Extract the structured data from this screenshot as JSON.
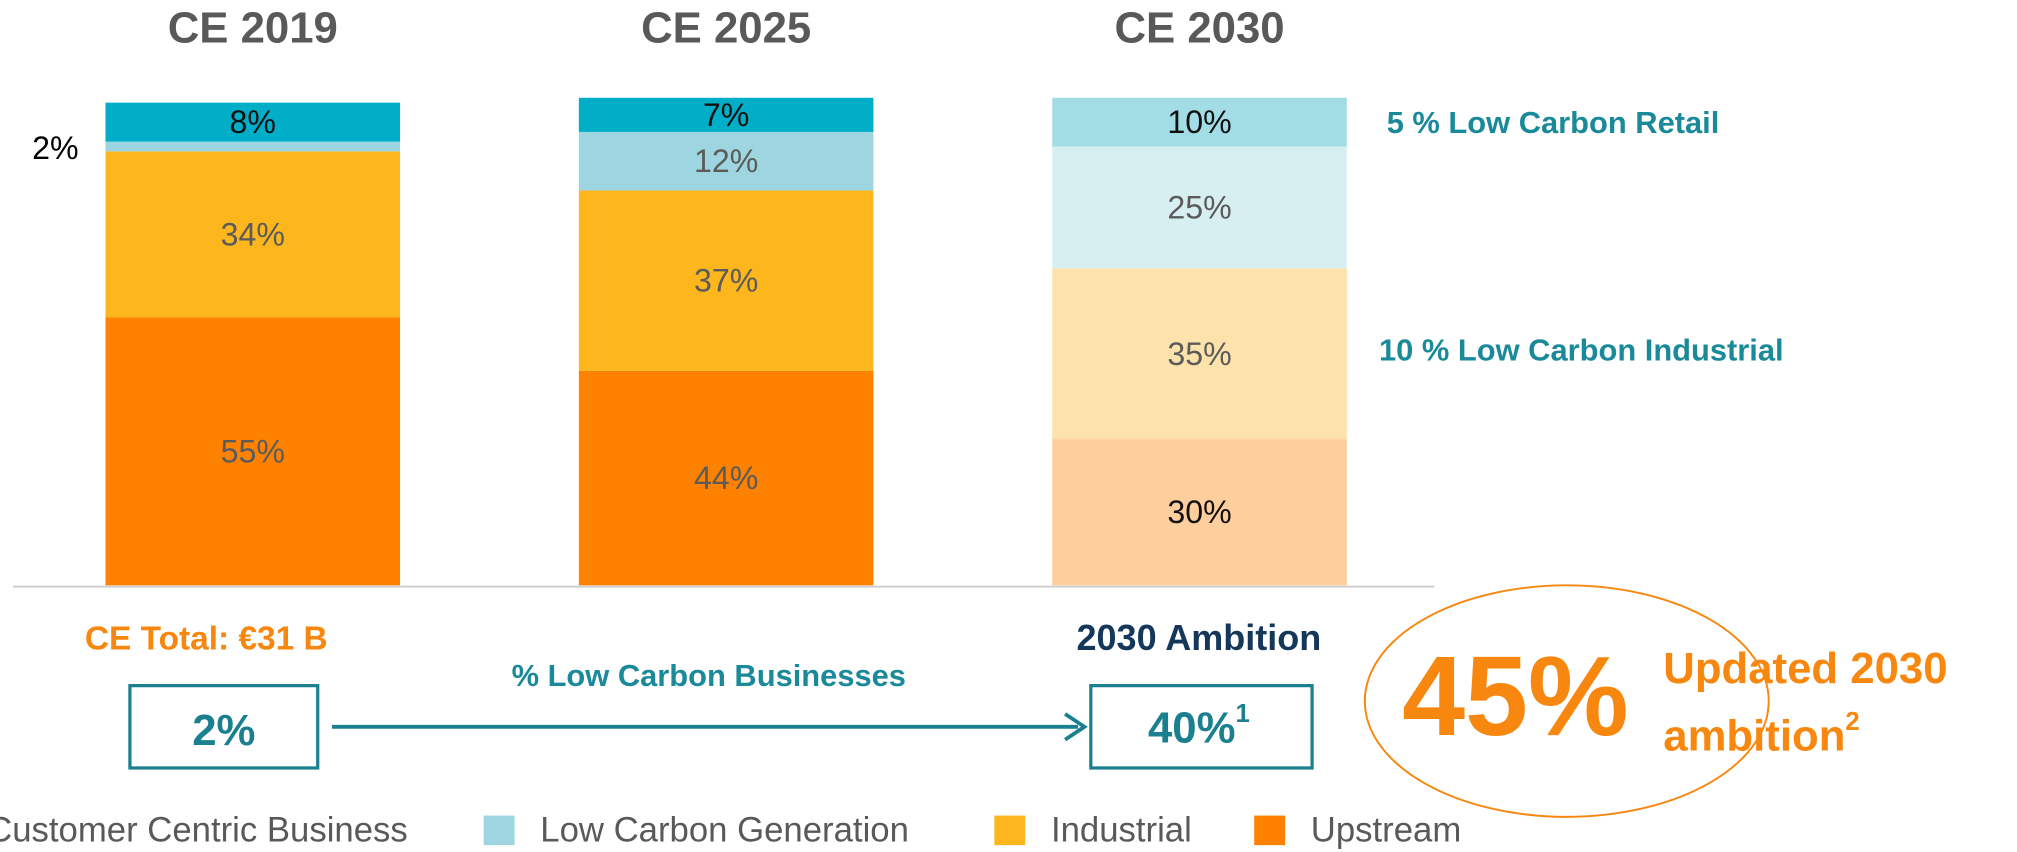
{
  "chart_data": {
    "type": "bar",
    "stacked": true,
    "categories": [
      "CE 2019",
      "CE 2025",
      "CE 2030"
    ],
    "ylim": [
      0,
      100
    ],
    "series": [
      {
        "name": "Customer Centric Business",
        "color": "#00aec7",
        "colors": [
          "#00aec7",
          "#00aec7",
          "#a2dde6"
        ],
        "values": [
          8,
          7,
          10
        ],
        "value_labels": [
          "8%",
          "7%",
          "10%"
        ]
      },
      {
        "name": "Low Carbon Generation",
        "color": "#9dd6e0",
        "colors": [
          "#9dd6e0",
          "#9dd6e0",
          "#d8eff2"
        ],
        "values": [
          2,
          12,
          25
        ],
        "value_labels": [
          "2%",
          "12%",
          "25%"
        ]
      },
      {
        "name": "Industrial",
        "color": "#fdb71d",
        "colors": [
          "#fdb71d",
          "#fdb71d",
          "#fde3ab"
        ],
        "values": [
          34,
          37,
          35
        ],
        "value_labels": [
          "34%",
          "37%",
          "35%"
        ]
      },
      {
        "name": "Upstream",
        "color": "#fe8200",
        "colors": [
          "#fe8200",
          "#fe8200",
          "#fecf9c"
        ],
        "values": [
          55,
          44,
          30
        ],
        "value_labels": [
          "55%",
          "44%",
          "30%"
        ]
      }
    ],
    "annotations": {
      "retail_note": "5 % Low Carbon Retail",
      "industrial_note": "10 % Low Carbon Industrial",
      "ce_total": "CE Total: €31 B",
      "low_carbon_label": "% Low Carbon Businesses",
      "start_value": "2%",
      "ambition_title": "2030 Ambition",
      "ambition_value": "40%",
      "ambition_footnote": "1",
      "updated_value": "45%",
      "updated_line1": "Updated 2030",
      "updated_line2": "ambition",
      "updated_footnote": "2"
    }
  }
}
